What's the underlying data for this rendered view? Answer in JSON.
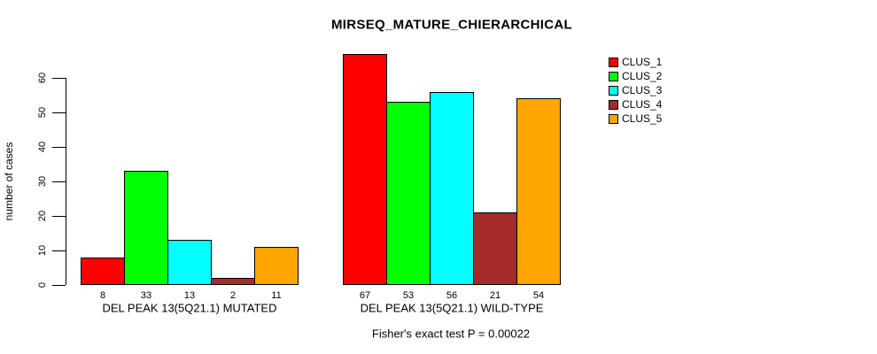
{
  "chart_data": {
    "type": "bar",
    "title": "MIRSEQ_MATURE_CHIERARCHICAL",
    "ylabel": "number of cases",
    "xlabel": "",
    "ylim": [
      0,
      60
    ],
    "yticks": [
      0,
      10,
      20,
      30,
      40,
      50,
      60
    ],
    "categories": [
      "DEL PEAK 13(5Q21.1) MUTATED",
      "DEL PEAK 13(5Q21.1) WILD-TYPE"
    ],
    "series": [
      {
        "name": "CLUS_1",
        "color": "#FF0000",
        "values": [
          8,
          67
        ]
      },
      {
        "name": "CLUS_2",
        "color": "#00FF00",
        "values": [
          33,
          53
        ]
      },
      {
        "name": "CLUS_3",
        "color": "#00FFFF",
        "values": [
          13,
          56
        ]
      },
      {
        "name": "CLUS_4",
        "color": "#A52A2A",
        "values": [
          2,
          21
        ]
      },
      {
        "name": "CLUS_5",
        "color": "#FFA500",
        "values": [
          11,
          54
        ]
      }
    ],
    "bar_value_labels": true,
    "annotation": "Fisher's exact test P = 0.00022",
    "legend_position": "right",
    "grid": false,
    "background": "#FFFFFF",
    "bar_border_color": "#000000"
  }
}
